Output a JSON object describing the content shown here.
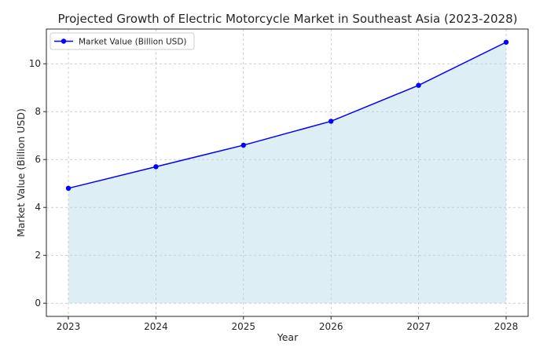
{
  "chart_data": {
    "type": "line",
    "title": "Projected Growth of Electric Motorcycle Market in Southeast Asia (2023-2028)",
    "xlabel": "Year",
    "ylabel": "Market Value (Billion USD)",
    "x": [
      "2023",
      "2024",
      "2025",
      "2026",
      "2027",
      "2028"
    ],
    "series": [
      {
        "name": "Market Value (Billion USD)",
        "values": [
          4.8,
          5.7,
          6.6,
          7.6,
          9.1,
          10.9
        ],
        "color": "#0000ff",
        "fill_color": "#add8e6"
      }
    ],
    "yticks": [
      0,
      2,
      4,
      6,
      8,
      10
    ],
    "ylim": [
      -0.55,
      11.45
    ],
    "grid": true,
    "grid_style": "dashed",
    "area_fill": true,
    "legend_position": "top-left"
  }
}
